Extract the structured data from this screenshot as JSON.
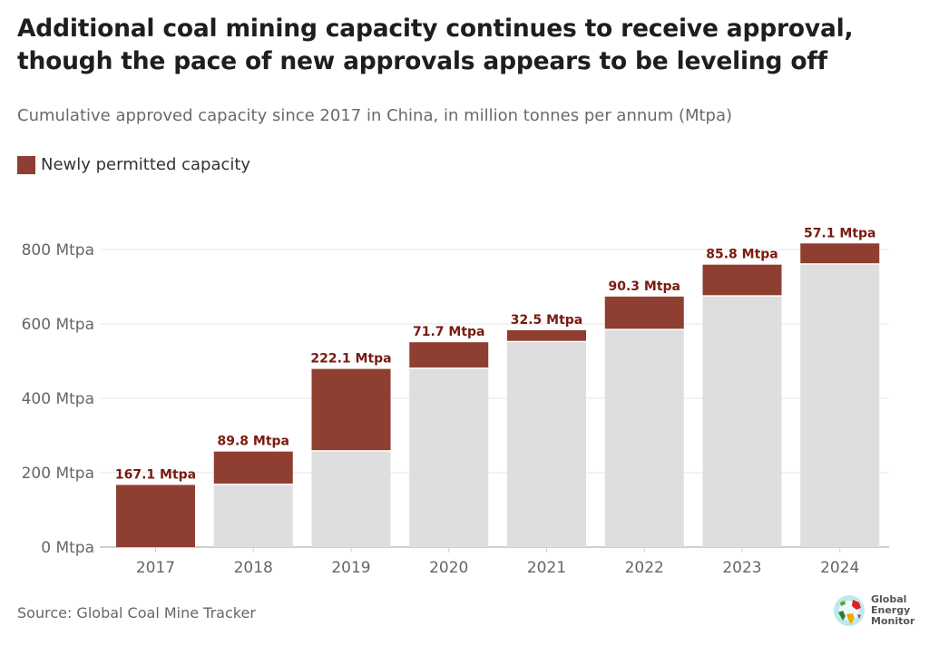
{
  "title": "Additional coal mining capacity continues to receive approval, though the pace of new approvals appears to be leveling off",
  "subtitle": "Cumulative approved capacity since 2017 in China, in million tonnes per annum (Mtpa)",
  "legend": {
    "label": "Newly permitted capacity",
    "color": "#8f3e32"
  },
  "source": "Source: Global Coal Mine Tracker",
  "logo": {
    "text": "Global\nEnergy\nMonitor"
  },
  "colors": {
    "new": "#8f3e32",
    "existing": "#dedede",
    "label": "#7a1a10"
  },
  "chart_data": {
    "type": "bar",
    "stacked": true,
    "categories": [
      "2017",
      "2018",
      "2019",
      "2020",
      "2021",
      "2022",
      "2023",
      "2024"
    ],
    "series": [
      {
        "name": "",
        "values": [
          0,
          167.1,
          256.9,
          479.0,
          550.7,
          583.2,
          673.5,
          759.3
        ]
      },
      {
        "name": "Newly permitted capacity",
        "values": [
          167.1,
          89.8,
          222.1,
          71.7,
          32.5,
          90.3,
          85.8,
          57.1
        ]
      }
    ],
    "data_labels": [
      "167.1 Mtpa",
      "89.8 Mtpa",
      "222.1 Mtpa",
      "71.7 Mtpa",
      "32.5 Mtpa",
      "90.3 Mtpa",
      "85.8 Mtpa",
      "57.1 Mtpa"
    ],
    "y_ticks": [
      0,
      200,
      400,
      600,
      800
    ],
    "y_tick_labels": [
      "0 Mtpa",
      "200 Mtpa",
      "400 Mtpa",
      "600 Mtpa",
      "800 Mtpa"
    ],
    "ylim": [
      0,
      850
    ],
    "grid": true,
    "legend_position": "top-left"
  }
}
